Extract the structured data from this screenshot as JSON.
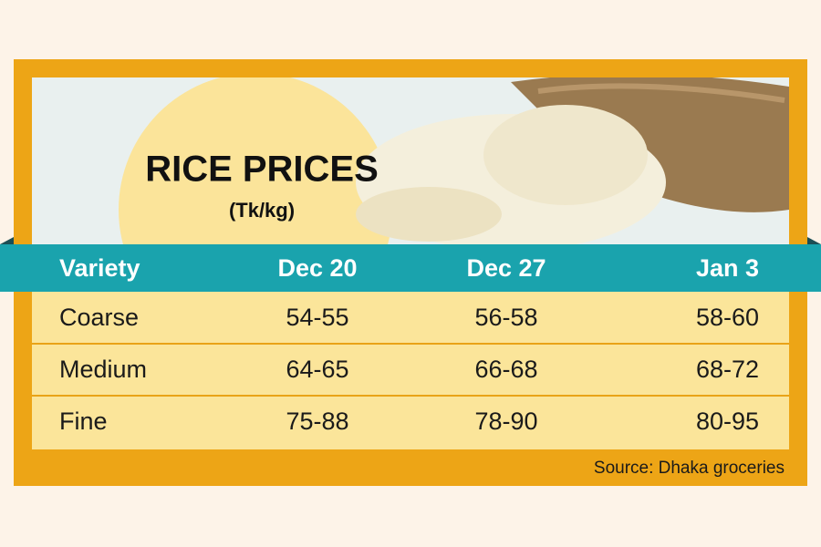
{
  "header": {
    "title": "RICE PRICES",
    "subtitle": "(Tk/kg)"
  },
  "table": {
    "columns": [
      "Variety",
      "Dec 20",
      "Dec 27",
      "Jan 3"
    ],
    "rows": [
      [
        "Coarse",
        "54-55",
        "56-58",
        "58-60"
      ],
      [
        "Medium",
        "64-65",
        "66-68",
        "68-72"
      ],
      [
        "Fine",
        "75-88",
        "78-90",
        "80-95"
      ]
    ]
  },
  "footer": {
    "source": "Source: Dhaka groceries"
  }
}
